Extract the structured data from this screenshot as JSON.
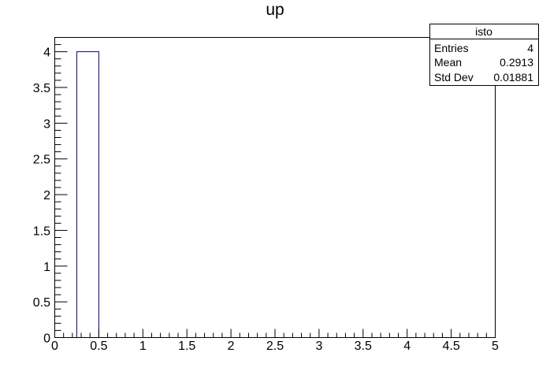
{
  "chart_data": {
    "type": "bar",
    "title": "up",
    "xlabel": "",
    "ylabel": "",
    "xlim": [
      0,
      5
    ],
    "ylim": [
      0,
      4.2
    ],
    "x_ticks": [
      "0",
      "0.5",
      "1",
      "1.5",
      "2",
      "2.5",
      "3",
      "3.5",
      "4",
      "4.5",
      "5"
    ],
    "y_ticks": [
      "0",
      "0.5",
      "1",
      "1.5",
      "2",
      "2.5",
      "3",
      "3.5",
      "4"
    ],
    "bin_width": 0.25,
    "bins": [
      {
        "low": 0.25,
        "high": 0.5,
        "count": 4
      }
    ],
    "line_color": "#00007f",
    "grid": false,
    "stats_box": {
      "name": "isto",
      "entries_label": "Entries",
      "entries": "4",
      "mean_label": "Mean",
      "mean": "0.2913",
      "stddev_label": "Std Dev",
      "stddev": "0.01881"
    }
  }
}
